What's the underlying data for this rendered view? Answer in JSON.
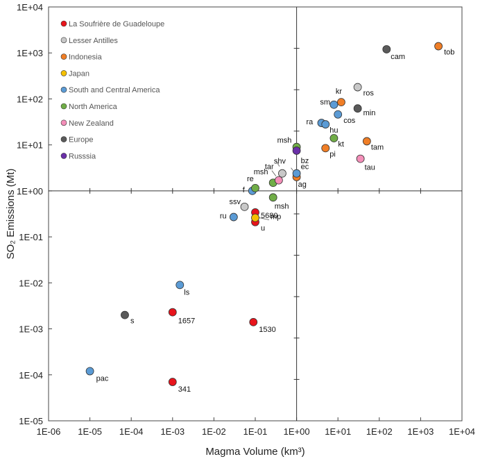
{
  "chart_data": {
    "type": "scatter",
    "title": "",
    "xlabel": "Magma Volume (km³)",
    "ylabel": "SO₂ Emissions (Mt)",
    "xscale": "log",
    "yscale": "log",
    "xlim": [
      1e-06,
      10000
    ],
    "ylim": [
      1e-05,
      10000
    ],
    "grid": false,
    "legend_position": "top-left",
    "x_ticks": [
      "1E-06",
      "1E-05",
      "1E-04",
      "1E-03",
      "1E-02",
      "1E-01",
      "1E+00",
      "1E+01",
      "1E+02",
      "1E+03",
      "1E+04"
    ],
    "y_ticks": [
      "1E+04",
      "1E+03",
      "1E+02",
      "1E+01",
      "1E+00",
      "1E-01",
      "1E-02",
      "1E-03",
      "1E-04",
      "1E-05"
    ],
    "reference_lines": {
      "x": 1,
      "y": 1
    },
    "series": [
      {
        "name": "La Soufrière de Guadeloupe",
        "color": "#e8141c",
        "points": [
          {
            "x": 0.001,
            "y": 0.0023,
            "label": "1657"
          },
          {
            "x": 0.09,
            "y": 0.0014,
            "label": "1530"
          },
          {
            "x": 0.001,
            "y": 7e-05,
            "label": "341"
          },
          {
            "x": 0.1,
            "y": 0.21,
            "label": "u"
          },
          {
            "x": 0.1,
            "y": 0.34,
            "label": "5680"
          }
        ]
      },
      {
        "name": "Lesser Antilles",
        "color": "#c8c8c8",
        "points": [
          {
            "x": 0.055,
            "y": 0.45,
            "label": "ssv"
          },
          {
            "x": 0.45,
            "y": 2.4,
            "label": "shv"
          },
          {
            "x": 30,
            "y": 180,
            "label": "ros"
          }
        ]
      },
      {
        "name": "Indonesia",
        "color": "#f07e26",
        "points": [
          {
            "x": 2700,
            "y": 1400,
            "label": "tob"
          },
          {
            "x": 12,
            "y": 85,
            "label": "kr"
          },
          {
            "x": 5,
            "y": 8.5,
            "label": "pi"
          },
          {
            "x": 50,
            "y": 12,
            "label": "tam"
          },
          {
            "x": 1,
            "y": 2.0,
            "label": "ag"
          }
        ]
      },
      {
        "name": "Japan",
        "color": "#f5c000",
        "points": [
          {
            "x": 0.1,
            "y": 0.26,
            "label": "mp"
          }
        ]
      },
      {
        "name": "South and Central America",
        "color": "#5b9bd5",
        "points": [
          {
            "x": 8,
            "y": 75,
            "label": "sm"
          },
          {
            "x": 10,
            "y": 46,
            "label": "cos"
          },
          {
            "x": 4,
            "y": 30,
            "label": "ra"
          },
          {
            "x": 5,
            "y": 28,
            "label": "hu"
          },
          {
            "x": 1,
            "y": 2.4,
            "label": "ec"
          },
          {
            "x": 0.085,
            "y": 1.0,
            "label": "f"
          },
          {
            "x": 0.03,
            "y": 0.27,
            "label": "ru"
          },
          {
            "x": 0.0015,
            "y": 0.009,
            "label": "ls"
          },
          {
            "x": 1e-05,
            "y": 0.00012,
            "label": "pac"
          }
        ]
      },
      {
        "name": "North America",
        "color": "#70ad47",
        "points": [
          {
            "x": 1,
            "y": 9,
            "label": "msh"
          },
          {
            "x": 8,
            "y": 14,
            "label": "kt"
          },
          {
            "x": 0.27,
            "y": 1.5,
            "label": "msh"
          },
          {
            "x": 0.1,
            "y": 1.15,
            "label": "re"
          },
          {
            "x": 0.27,
            "y": 0.72,
            "label": "msh"
          }
        ]
      },
      {
        "name": "New Zealand",
        "color": "#f48fb9",
        "points": [
          {
            "x": 0.37,
            "y": 1.7,
            "label": "tar"
          },
          {
            "x": 35,
            "y": 5,
            "label": "tau"
          }
        ]
      },
      {
        "name": "Europe",
        "color": "#5a5a5a",
        "points": [
          {
            "x": 150,
            "y": 1200,
            "label": "cam"
          },
          {
            "x": 30,
            "y": 62,
            "label": "min"
          },
          {
            "x": 7e-05,
            "y": 0.002,
            "label": "s"
          }
        ]
      },
      {
        "name": "Russsia",
        "color": "#6a2fa8",
        "points": [
          {
            "x": 1,
            "y": 7.5,
            "label": "bz"
          }
        ]
      }
    ]
  }
}
